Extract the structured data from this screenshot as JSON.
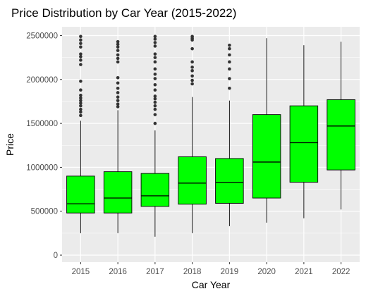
{
  "chart_data": {
    "type": "box",
    "title": "Price Distribution by Car Year (2015-2022)",
    "xlabel": "Car Year",
    "ylabel": "Price",
    "ylim": [
      -80000,
      2600000
    ],
    "y_ticks": [
      0,
      500000,
      1000000,
      1500000,
      2000000,
      2500000
    ],
    "y_tick_labels": [
      "0",
      "500000",
      "1000000",
      "1500000",
      "2000000",
      "2500000"
    ],
    "categories": [
      "2015",
      "2016",
      "2017",
      "2018",
      "2019",
      "2020",
      "2021",
      "2022"
    ],
    "boxes": [
      {
        "category": "2015",
        "whisker_low": 250000,
        "q1": 480000,
        "median": 585000,
        "q3": 900000,
        "whisker_high": 1530000,
        "outliers": [
          1590000,
          1630000,
          1660000,
          1700000,
          1730000,
          1760000,
          1790000,
          1820000,
          1880000,
          1980000,
          2170000,
          2220000,
          2260000,
          2290000,
          2370000,
          2410000,
          2450000,
          2490000
        ]
      },
      {
        "category": "2016",
        "whisker_low": 250000,
        "q1": 480000,
        "median": 650000,
        "q3": 950000,
        "whisker_high": 1650000,
        "outliers": [
          1690000,
          1720000,
          1760000,
          1800000,
          1850000,
          1900000,
          1960000,
          2020000,
          2200000,
          2240000,
          2280000,
          2330000,
          2370000,
          2400000,
          2430000
        ]
      },
      {
        "category": "2017",
        "whisker_low": 210000,
        "q1": 555000,
        "median": 675000,
        "q3": 930000,
        "whisker_high": 1420000,
        "outliers": [
          1500000,
          1600000,
          1660000,
          1700000,
          1740000,
          1780000,
          1810000,
          1880000,
          1940000,
          2010000,
          2060000,
          2120000,
          2200000,
          2250000,
          2290000,
          2380000,
          2420000,
          2460000,
          2490000
        ]
      },
      {
        "category": "2018",
        "whisker_low": 250000,
        "q1": 580000,
        "median": 820000,
        "q3": 1120000,
        "whisker_high": 1800000,
        "outliers": [
          1950000,
          1990000,
          2040000,
          2100000,
          2140000,
          2200000,
          2350000,
          2450000,
          2470000,
          2490000
        ]
      },
      {
        "category": "2019",
        "whisker_low": 330000,
        "q1": 590000,
        "median": 830000,
        "q3": 1100000,
        "whisker_high": 1760000,
        "outliers": [
          1900000,
          2010000,
          2120000,
          2200000,
          2280000,
          2350000,
          2390000
        ]
      },
      {
        "category": "2020",
        "whisker_low": 370000,
        "q1": 650000,
        "median": 1060000,
        "q3": 1600000,
        "whisker_high": 2470000,
        "outliers": []
      },
      {
        "category": "2021",
        "whisker_low": 420000,
        "q1": 830000,
        "median": 1280000,
        "q3": 1700000,
        "whisker_high": 2390000,
        "outliers": []
      },
      {
        "category": "2022",
        "whisker_low": 520000,
        "q1": 970000,
        "median": 1470000,
        "q3": 1770000,
        "whisker_high": 2430000,
        "outliers": []
      }
    ],
    "box_fill": "#00ff00",
    "outline_color": "#000000",
    "outlier_color": "#333333",
    "panel_background": "#ebebeb",
    "grid_color": "#ffffff",
    "grid": true,
    "legend": "none"
  }
}
